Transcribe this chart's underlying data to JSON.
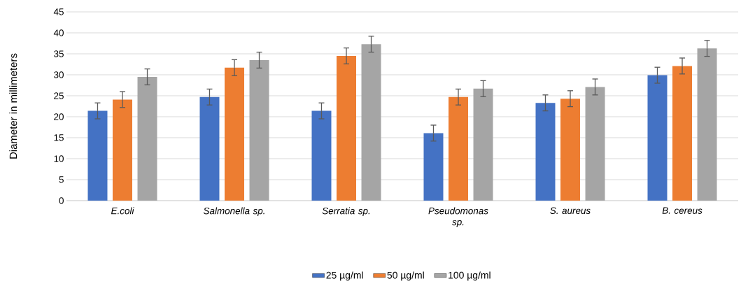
{
  "chart_data": {
    "type": "bar",
    "ylabel": "Diameter in millimeters",
    "categories": [
      "E.coli",
      "Salmonella sp.",
      "Serratia sp.",
      "Pseudomonas sp.",
      "S. aureus",
      "B. cereus"
    ],
    "series": [
      {
        "name": "25 µg/ml",
        "color": "#4472c4",
        "values": [
          21.4,
          24.7,
          21.4,
          16.1,
          23.3,
          29.9
        ],
        "errors": [
          1.9,
          1.9,
          1.9,
          1.9,
          1.9,
          1.9
        ]
      },
      {
        "name": "50 µg/ml",
        "color": "#ed7d31",
        "values": [
          24.1,
          31.7,
          34.5,
          24.7,
          24.3,
          32.1
        ],
        "errors": [
          1.9,
          1.9,
          1.9,
          1.9,
          1.9,
          1.9
        ]
      },
      {
        "name": "100 µg/ml",
        "color": "#a5a5a5",
        "values": [
          29.5,
          33.5,
          37.3,
          26.7,
          27.1,
          36.3
        ],
        "errors": [
          1.9,
          1.9,
          1.9,
          1.9,
          1.9,
          1.9
        ]
      }
    ],
    "ylim": [
      0,
      45
    ],
    "yticks": [
      0,
      5,
      10,
      15,
      20,
      25,
      30,
      35,
      40,
      45
    ],
    "grid": "y",
    "legend": "bottom"
  }
}
